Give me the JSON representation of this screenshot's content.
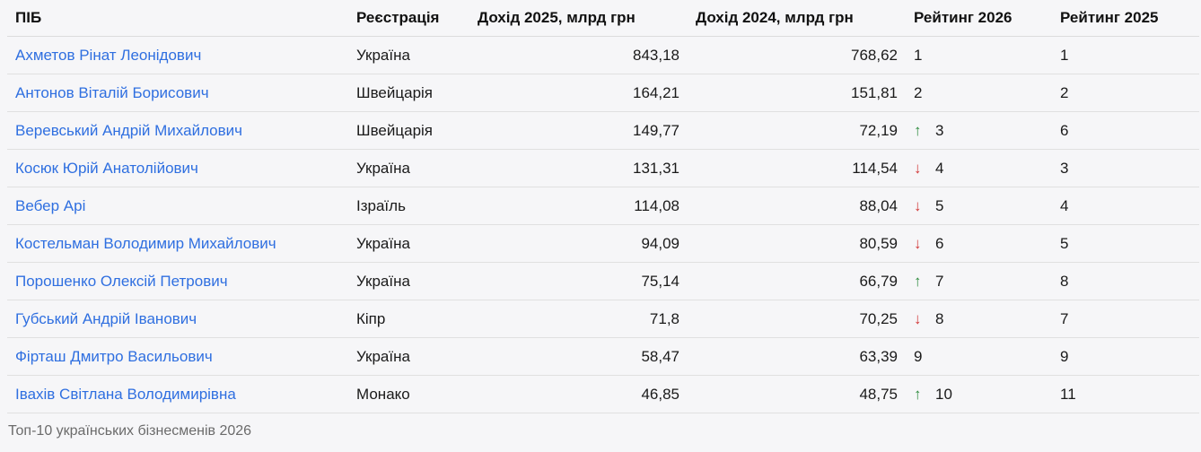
{
  "headers": {
    "name": "ПІБ",
    "registration": "Реєстрація",
    "income2025": "Дохід 2025, млрд грн",
    "income2024": "Дохід 2024, млрд грн",
    "rank2026": "Рейтинг 2026",
    "rank2025": "Рейтинг 2025"
  },
  "rows": [
    {
      "name": "Ахметов Рінат Леонідович",
      "registration": "Україна",
      "income2025": "843,18",
      "income2024": "768,62",
      "trend": "",
      "rank2026": "1",
      "rank2025": "1"
    },
    {
      "name": "Антонов Віталій Борисович",
      "registration": "Швейцарія",
      "income2025": "164,21",
      "income2024": "151,81",
      "trend": "",
      "rank2026": "2",
      "rank2025": "2"
    },
    {
      "name": "Веревський Андрій Михайлович",
      "registration": "Швейцарія",
      "income2025": "149,77",
      "income2024": "72,19",
      "trend": "up",
      "rank2026": "3",
      "rank2025": "6"
    },
    {
      "name": "Косюк Юрій Анатолійович",
      "registration": "Україна",
      "income2025": "131,31",
      "income2024": "114,54",
      "trend": "down",
      "rank2026": "4",
      "rank2025": "3"
    },
    {
      "name": "Вебер Арі",
      "registration": "Ізраїль",
      "income2025": "114,08",
      "income2024": "88,04",
      "trend": "down",
      "rank2026": "5",
      "rank2025": "4"
    },
    {
      "name": "Костельман Володимир Михайлович",
      "registration": "Україна",
      "income2025": "94,09",
      "income2024": "80,59",
      "trend": "down",
      "rank2026": "6",
      "rank2025": "5"
    },
    {
      "name": "Порошенко Олексій Петрович",
      "registration": "Україна",
      "income2025": "75,14",
      "income2024": "66,79",
      "trend": "up",
      "rank2026": "7",
      "rank2025": "8"
    },
    {
      "name": "Губський Андрій Іванович",
      "registration": "Кіпр",
      "income2025": "71,8",
      "income2024": "70,25",
      "trend": "down",
      "rank2026": "8",
      "rank2025": "7"
    },
    {
      "name": "Фірташ Дмитро Васильович",
      "registration": "Україна",
      "income2025": "58,47",
      "income2024": "63,39",
      "trend": "",
      "rank2026": "9",
      "rank2025": "9"
    },
    {
      "name": "Івахів Світлана Володимирівна",
      "registration": "Монако",
      "income2025": "46,85",
      "income2024": "48,75",
      "trend": "up",
      "rank2026": "10",
      "rank2025": "11"
    }
  ],
  "trend_icons": {
    "up": "↑",
    "down": "↓"
  },
  "colors": {
    "link": "#2f6fe0",
    "up": "#2e8b3e",
    "down": "#d23a3a"
  },
  "caption": "Топ-10 українських бізнесменів 2026"
}
